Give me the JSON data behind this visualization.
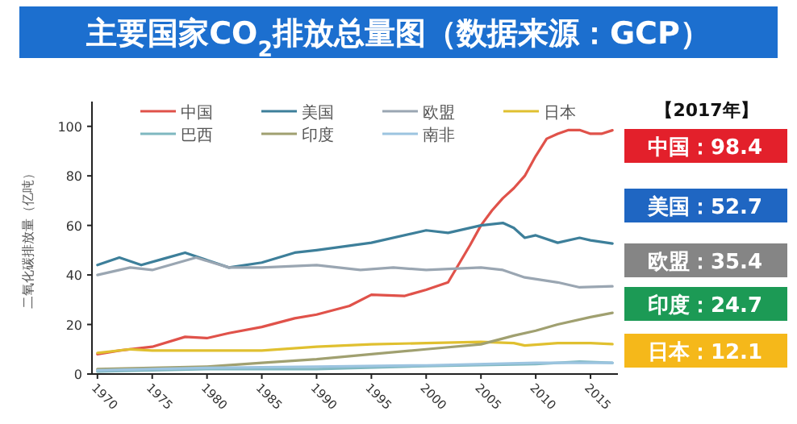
{
  "chart_data": {
    "type": "line",
    "title": "主要国家CO$_{2}$排放总量图（数据来源：GCP）",
    "ylabel": "二氧化碳排放量（亿吨）",
    "xlim": [
      1969.5,
      2017.5
    ],
    "xticks": [
      1970,
      1975,
      1980,
      1985,
      1990,
      1995,
      2000,
      2005,
      2010,
      2015
    ],
    "ylim": [
      0,
      110
    ],
    "yticks": [
      0,
      20,
      40,
      60,
      80,
      100
    ],
    "legend": "top",
    "series": [
      {
        "name": "中国",
        "color": "#e0524a",
        "x": [
          1970,
          1972,
          1975,
          1978,
          1980,
          1982,
          1985,
          1988,
          1990,
          1993,
          1995,
          1998,
          2000,
          2002,
          2004,
          2005,
          2006,
          2007,
          2008,
          2009,
          2010,
          2011,
          2012,
          2013,
          2014,
          2015,
          2016,
          2017
        ],
        "values": [
          8,
          9.5,
          11,
          15,
          14.5,
          16.5,
          19,
          22.5,
          24,
          27.5,
          32,
          31.5,
          34,
          37,
          52,
          60,
          66,
          71,
          75,
          80,
          88,
          95,
          97,
          98.5,
          98.5,
          97,
          97,
          98.4
        ]
      },
      {
        "name": "美国",
        "color": "#3d7f9a",
        "x": [
          1970,
          1972,
          1974,
          1976,
          1978,
          1980,
          1982,
          1985,
          1988,
          1990,
          1995,
          2000,
          2002,
          2005,
          2007,
          2008,
          2009,
          2010,
          2012,
          2014,
          2015,
          2017
        ],
        "values": [
          44,
          47,
          44,
          46.5,
          49,
          46,
          43,
          45,
          49,
          50,
          53,
          58,
          57,
          60,
          61,
          59,
          55,
          56,
          53,
          55,
          54,
          52.7
        ]
      },
      {
        "name": "欧盟",
        "color": "#9aa6b2",
        "x": [
          1970,
          1973,
          1975,
          1979,
          1982,
          1985,
          1990,
          1994,
          1997,
          2000,
          2005,
          2007,
          2009,
          2012,
          2014,
          2017
        ],
        "values": [
          40,
          43,
          42,
          47,
          43,
          43,
          44,
          42,
          43,
          42,
          43,
          42,
          39,
          37,
          35,
          35.4
        ]
      },
      {
        "name": "日本",
        "color": "#e0c030",
        "x": [
          1970,
          1973,
          1975,
          1980,
          1985,
          1990,
          1995,
          2000,
          2005,
          2008,
          2009,
          2012,
          2015,
          2017
        ],
        "values": [
          8.5,
          10,
          9.5,
          9.5,
          9.5,
          11,
          12,
          12.5,
          13,
          12.5,
          11.5,
          12.5,
          12.5,
          12.1
        ]
      },
      {
        "name": "巴西",
        "color": "#7fb8c0",
        "x": [
          1970,
          1980,
          1990,
          2000,
          2010,
          2014,
          2017
        ],
        "values": [
          1,
          2,
          2,
          3.2,
          4,
          5,
          4.5
        ]
      },
      {
        "name": "印度",
        "color": "#a0a070",
        "x": [
          1970,
          1975,
          1980,
          1985,
          1990,
          1995,
          2000,
          2005,
          2008,
          2010,
          2012,
          2015,
          2017
        ],
        "values": [
          2,
          2.5,
          3,
          4.5,
          6,
          8,
          10,
          12,
          15.5,
          17.5,
          20,
          23,
          24.7
        ]
      },
      {
        "name": "南非",
        "color": "#9cc4e0",
        "x": [
          1970,
          1980,
          1990,
          2000,
          2010,
          2017
        ],
        "values": [
          1.5,
          2.5,
          3,
          3.5,
          4.5,
          4.5
        ]
      }
    ],
    "annotations": [
      "【2017年】",
      "中国：98.4",
      "美国：52.7",
      "欧盟：35.4",
      "印度：24.7",
      "日本：12.1"
    ]
  }
}
